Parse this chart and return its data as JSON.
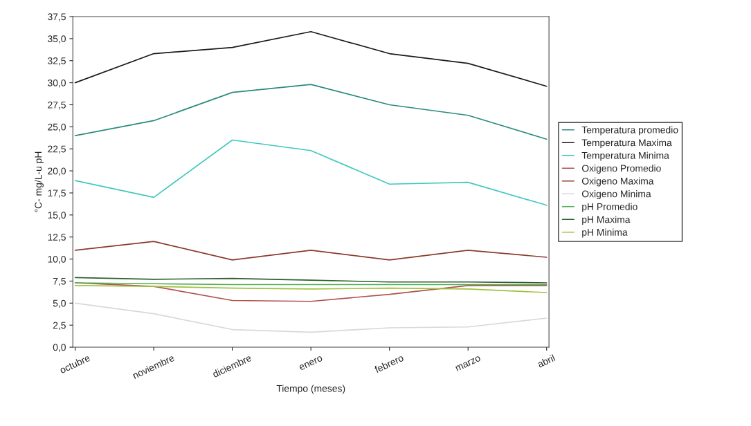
{
  "chart_data": {
    "type": "line",
    "xlabel": "Tiempo (meses)",
    "ylabel": "°C- mg/L-u pH",
    "categories": [
      "octubre",
      "noviembre",
      "diciembre",
      "enero",
      "febrero",
      "marzo",
      "abril"
    ],
    "ylim": [
      0,
      37.5
    ],
    "yticks": [
      {
        "value": 0,
        "label": "0,0"
      },
      {
        "value": 2.5,
        "label": "2,5"
      },
      {
        "value": 5,
        "label": "5,0"
      },
      {
        "value": 7.5,
        "label": "7,5"
      },
      {
        "value": 10,
        "label": "10,0"
      },
      {
        "value": 12.5,
        "label": "12,5"
      },
      {
        "value": 15,
        "label": "15,0"
      },
      {
        "value": 17.5,
        "label": "17,5"
      },
      {
        "value": 20,
        "label": "20,0"
      },
      {
        "value": 22.5,
        "label": "22,5"
      },
      {
        "value": 25,
        "label": "25,0"
      },
      {
        "value": 27.5,
        "label": "27,5"
      },
      {
        "value": 30,
        "label": "30,0"
      },
      {
        "value": 32.5,
        "label": "32,5"
      },
      {
        "value": 35,
        "label": "35,0"
      },
      {
        "value": 37.5,
        "label": "37,5"
      }
    ],
    "grid": false,
    "legend": "right",
    "marker": "none",
    "line_style": "solid",
    "series": [
      {
        "name": "Temperatura promedio",
        "color": "#2a8a80",
        "values": [
          24.0,
          25.7,
          28.9,
          29.8,
          27.5,
          26.3,
          23.6
        ]
      },
      {
        "name": "Temperatura Maxima",
        "color": "#1a1a1a",
        "values": [
          30.0,
          33.3,
          34.0,
          35.8,
          33.3,
          32.2,
          29.6
        ]
      },
      {
        "name": "Temperatura Minima",
        "color": "#40c8c0",
        "values": [
          18.9,
          17.0,
          23.5,
          22.3,
          18.5,
          18.7,
          16.1
        ]
      },
      {
        "name": "Oxigeno Promedio",
        "color": "#b05050",
        "values": [
          7.3,
          6.9,
          5.3,
          5.2,
          6.0,
          7.0,
          7.0
        ]
      },
      {
        "name": "Oxigeno Maxima",
        "color": "#8b3a2a",
        "values": [
          11.0,
          12.0,
          9.9,
          11.0,
          9.9,
          11.0,
          10.2
        ]
      },
      {
        "name": "Oxigeno Minima",
        "color": "#d8d8d8",
        "values": [
          5.0,
          3.8,
          2.0,
          1.7,
          2.2,
          2.3,
          3.3
        ]
      },
      {
        "name": "pH Promedio",
        "color": "#50b050",
        "values": [
          7.3,
          7.2,
          7.1,
          7.1,
          7.1,
          7.1,
          7.1
        ]
      },
      {
        "name": "pH Maxima",
        "color": "#2f5e2f",
        "values": [
          7.9,
          7.7,
          7.8,
          7.6,
          7.4,
          7.4,
          7.3
        ]
      },
      {
        "name": "pH Minima",
        "color": "#a0c040",
        "values": [
          7.0,
          6.9,
          6.7,
          6.6,
          6.7,
          6.6,
          6.2
        ]
      }
    ]
  }
}
